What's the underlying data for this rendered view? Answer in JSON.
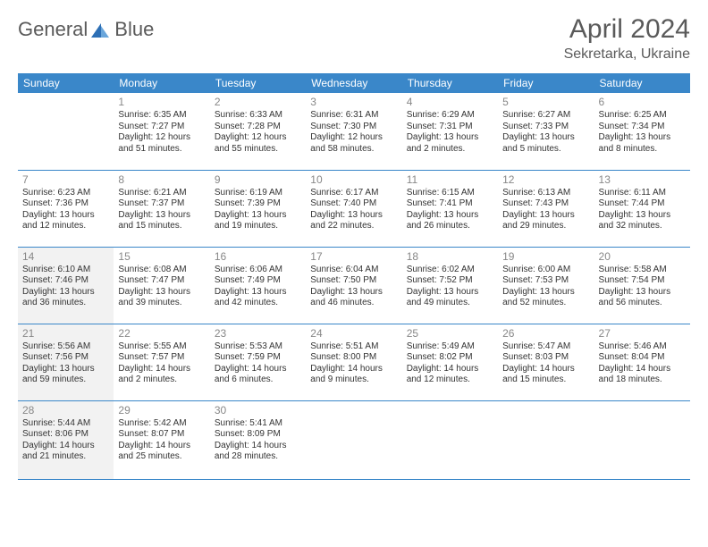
{
  "logo": {
    "textA": "General",
    "textB": "Blue"
  },
  "title": "April 2024",
  "location": "Sekretarka, Ukraine",
  "headers": [
    "Sunday",
    "Monday",
    "Tuesday",
    "Wednesday",
    "Thursday",
    "Friday",
    "Saturday"
  ],
  "colors": {
    "header_bg": "#3a87c9",
    "border": "#3a87c9",
    "shaded_bg": "#f2f2f2",
    "text": "#333333",
    "daynum": "#888888",
    "title": "#5a5a5a"
  },
  "weeks": [
    [
      {
        "blank": true
      },
      {
        "day": "1",
        "sunrise": "Sunrise: 6:35 AM",
        "sunset": "Sunset: 7:27 PM",
        "daylight": "Daylight: 12 hours and 51 minutes."
      },
      {
        "day": "2",
        "sunrise": "Sunrise: 6:33 AM",
        "sunset": "Sunset: 7:28 PM",
        "daylight": "Daylight: 12 hours and 55 minutes."
      },
      {
        "day": "3",
        "sunrise": "Sunrise: 6:31 AM",
        "sunset": "Sunset: 7:30 PM",
        "daylight": "Daylight: 12 hours and 58 minutes."
      },
      {
        "day": "4",
        "sunrise": "Sunrise: 6:29 AM",
        "sunset": "Sunset: 7:31 PM",
        "daylight": "Daylight: 13 hours and 2 minutes."
      },
      {
        "day": "5",
        "sunrise": "Sunrise: 6:27 AM",
        "sunset": "Sunset: 7:33 PM",
        "daylight": "Daylight: 13 hours and 5 minutes."
      },
      {
        "day": "6",
        "sunrise": "Sunrise: 6:25 AM",
        "sunset": "Sunset: 7:34 PM",
        "daylight": "Daylight: 13 hours and 8 minutes."
      }
    ],
    [
      {
        "day": "7",
        "sunrise": "Sunrise: 6:23 AM",
        "sunset": "Sunset: 7:36 PM",
        "daylight": "Daylight: 13 hours and 12 minutes."
      },
      {
        "day": "8",
        "sunrise": "Sunrise: 6:21 AM",
        "sunset": "Sunset: 7:37 PM",
        "daylight": "Daylight: 13 hours and 15 minutes."
      },
      {
        "day": "9",
        "sunrise": "Sunrise: 6:19 AM",
        "sunset": "Sunset: 7:39 PM",
        "daylight": "Daylight: 13 hours and 19 minutes."
      },
      {
        "day": "10",
        "sunrise": "Sunrise: 6:17 AM",
        "sunset": "Sunset: 7:40 PM",
        "daylight": "Daylight: 13 hours and 22 minutes."
      },
      {
        "day": "11",
        "sunrise": "Sunrise: 6:15 AM",
        "sunset": "Sunset: 7:41 PM",
        "daylight": "Daylight: 13 hours and 26 minutes."
      },
      {
        "day": "12",
        "sunrise": "Sunrise: 6:13 AM",
        "sunset": "Sunset: 7:43 PM",
        "daylight": "Daylight: 13 hours and 29 minutes."
      },
      {
        "day": "13",
        "sunrise": "Sunrise: 6:11 AM",
        "sunset": "Sunset: 7:44 PM",
        "daylight": "Daylight: 13 hours and 32 minutes."
      }
    ],
    [
      {
        "day": "14",
        "sunrise": "Sunrise: 6:10 AM",
        "sunset": "Sunset: 7:46 PM",
        "daylight": "Daylight: 13 hours and 36 minutes.",
        "shaded": true
      },
      {
        "day": "15",
        "sunrise": "Sunrise: 6:08 AM",
        "sunset": "Sunset: 7:47 PM",
        "daylight": "Daylight: 13 hours and 39 minutes."
      },
      {
        "day": "16",
        "sunrise": "Sunrise: 6:06 AM",
        "sunset": "Sunset: 7:49 PM",
        "daylight": "Daylight: 13 hours and 42 minutes."
      },
      {
        "day": "17",
        "sunrise": "Sunrise: 6:04 AM",
        "sunset": "Sunset: 7:50 PM",
        "daylight": "Daylight: 13 hours and 46 minutes."
      },
      {
        "day": "18",
        "sunrise": "Sunrise: 6:02 AM",
        "sunset": "Sunset: 7:52 PM",
        "daylight": "Daylight: 13 hours and 49 minutes."
      },
      {
        "day": "19",
        "sunrise": "Sunrise: 6:00 AM",
        "sunset": "Sunset: 7:53 PM",
        "daylight": "Daylight: 13 hours and 52 minutes."
      },
      {
        "day": "20",
        "sunrise": "Sunrise: 5:58 AM",
        "sunset": "Sunset: 7:54 PM",
        "daylight": "Daylight: 13 hours and 56 minutes."
      }
    ],
    [
      {
        "day": "21",
        "sunrise": "Sunrise: 5:56 AM",
        "sunset": "Sunset: 7:56 PM",
        "daylight": "Daylight: 13 hours and 59 minutes.",
        "shaded": true
      },
      {
        "day": "22",
        "sunrise": "Sunrise: 5:55 AM",
        "sunset": "Sunset: 7:57 PM",
        "daylight": "Daylight: 14 hours and 2 minutes."
      },
      {
        "day": "23",
        "sunrise": "Sunrise: 5:53 AM",
        "sunset": "Sunset: 7:59 PM",
        "daylight": "Daylight: 14 hours and 6 minutes."
      },
      {
        "day": "24",
        "sunrise": "Sunrise: 5:51 AM",
        "sunset": "Sunset: 8:00 PM",
        "daylight": "Daylight: 14 hours and 9 minutes."
      },
      {
        "day": "25",
        "sunrise": "Sunrise: 5:49 AM",
        "sunset": "Sunset: 8:02 PM",
        "daylight": "Daylight: 14 hours and 12 minutes."
      },
      {
        "day": "26",
        "sunrise": "Sunrise: 5:47 AM",
        "sunset": "Sunset: 8:03 PM",
        "daylight": "Daylight: 14 hours and 15 minutes."
      },
      {
        "day": "27",
        "sunrise": "Sunrise: 5:46 AM",
        "sunset": "Sunset: 8:04 PM",
        "daylight": "Daylight: 14 hours and 18 minutes."
      }
    ],
    [
      {
        "day": "28",
        "sunrise": "Sunrise: 5:44 AM",
        "sunset": "Sunset: 8:06 PM",
        "daylight": "Daylight: 14 hours and 21 minutes.",
        "shaded": true
      },
      {
        "day": "29",
        "sunrise": "Sunrise: 5:42 AM",
        "sunset": "Sunset: 8:07 PM",
        "daylight": "Daylight: 14 hours and 25 minutes."
      },
      {
        "day": "30",
        "sunrise": "Sunrise: 5:41 AM",
        "sunset": "Sunset: 8:09 PM",
        "daylight": "Daylight: 14 hours and 28 minutes."
      },
      {
        "blank": true
      },
      {
        "blank": true
      },
      {
        "blank": true
      },
      {
        "blank": true
      }
    ]
  ]
}
